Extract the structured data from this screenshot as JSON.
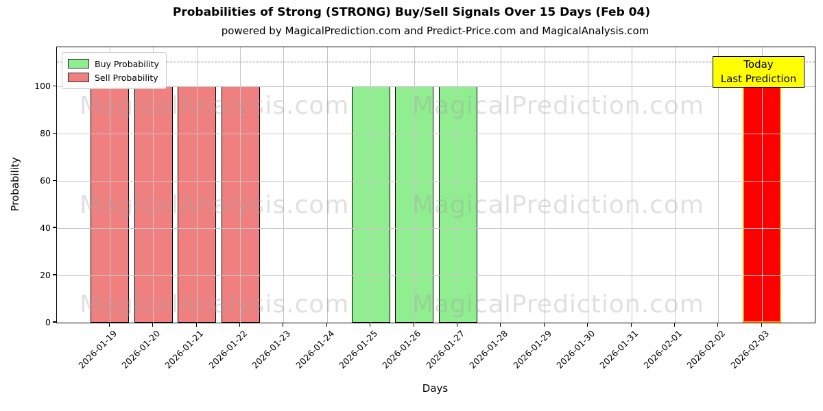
{
  "title": "Probabilities of Strong (STRONG) Buy/Sell Signals Over 15 Days (Feb 04)",
  "subtitle": "powered by MagicalPrediction.com and Predict-Price.com and MagicalAnalysis.com",
  "watermarks": {
    "left_text": "MagicalAnalysis.com",
    "right_text": "MagicalPrediction.com"
  },
  "legend": {
    "items": [
      {
        "label": "Buy Probability",
        "color": "#90ee90"
      },
      {
        "label": "Sell Probability",
        "color": "#f08080"
      }
    ]
  },
  "annotation": {
    "line1": "Today",
    "line2": "Last Prediction",
    "bg": "#ffff00",
    "border": "#000000"
  },
  "colors": {
    "buy": "#90ee90",
    "sell": "#f08080",
    "today_fill": "#ff0000",
    "today_edge": "#ffa500",
    "grid": "#c6c6c6",
    "dashed_line": "#7a7a7a",
    "bar_edge": "#000000"
  },
  "chart_data": {
    "type": "bar",
    "title": "Probabilities of Strong (STRONG) Buy/Sell Signals Over 15 Days (Feb 04)",
    "xlabel": "Days",
    "ylabel": "Probability",
    "categories": [
      "2026-01-19",
      "2026-01-20",
      "2026-01-21",
      "2026-01-22",
      "2026-01-23",
      "2026-01-24",
      "2026-01-25",
      "2026-01-26",
      "2026-01-27",
      "2026-01-28",
      "2026-01-29",
      "2026-01-30",
      "2026-01-31",
      "2026-02-01",
      "2026-02-02",
      "2026-02-03"
    ],
    "series": [
      {
        "name": "Buy Probability",
        "color": "#90ee90",
        "values": [
          0,
          0,
          0,
          0,
          0,
          0,
          100,
          100,
          100,
          0,
          0,
          0,
          0,
          0,
          0,
          0
        ]
      },
      {
        "name": "Sell Probability",
        "color": "#f08080",
        "values": [
          100,
          100,
          100,
          100,
          0,
          0,
          0,
          0,
          0,
          0,
          0,
          0,
          0,
          0,
          0,
          0
        ]
      },
      {
        "name": "Today Last Prediction",
        "color": "#ff0000",
        "edge": "#ffa500",
        "values": [
          0,
          0,
          0,
          0,
          0,
          0,
          0,
          0,
          0,
          0,
          0,
          0,
          0,
          0,
          0,
          100
        ]
      }
    ],
    "yticks": [
      0,
      20,
      40,
      60,
      80,
      100
    ],
    "ylim": [
      0,
      116.6
    ],
    "dashed_line_y": 110.5,
    "grid": true,
    "legend_position": "upper left"
  }
}
